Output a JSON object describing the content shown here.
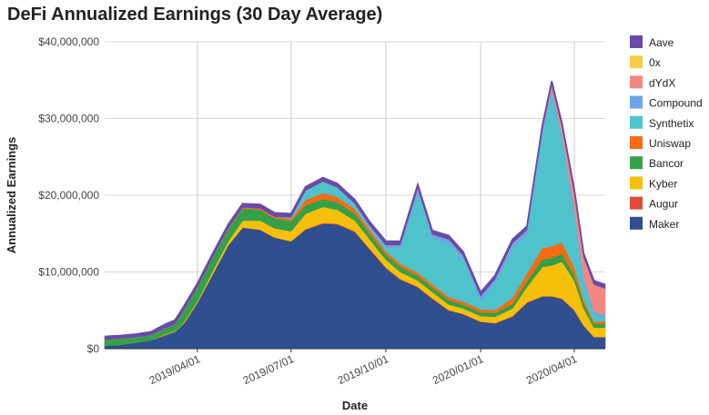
{
  "chart_data": {
    "type": "area",
    "stacked": true,
    "title": "DeFi Annualized Earnings (30 Day Average)",
    "xlabel": "Date",
    "ylabel": "Annualized Earnings",
    "ylim": [
      0,
      40000000
    ],
    "yticks": [
      0,
      10000000,
      20000000,
      30000000,
      40000000
    ],
    "ytick_labels": [
      "$0",
      "$10,000,000",
      "$20,000,000",
      "$30,000,000",
      "$40,000,000"
    ],
    "xlim": [
      "2019-01-01",
      "2020-05-01"
    ],
    "xticks": [
      "2019-04-01",
      "2019-07-01",
      "2019-10-01",
      "2020-01-01",
      "2020-04-01"
    ],
    "xtick_labels": [
      "2019/04/01",
      "2019/07/01",
      "2019/10/01",
      "2020/01/01",
      "2020/04/01"
    ],
    "grid": "vertical",
    "legend_position": "right",
    "x": [
      "2019-01-01",
      "2019-01-15",
      "2019-02-01",
      "2019-02-15",
      "2019-03-01",
      "2019-03-10",
      "2019-03-15",
      "2019-03-20",
      "2019-04-01",
      "2019-04-15",
      "2019-05-01",
      "2019-05-15",
      "2019-06-01",
      "2019-06-15",
      "2019-07-01",
      "2019-07-15",
      "2019-08-01",
      "2019-08-15",
      "2019-09-01",
      "2019-09-15",
      "2019-10-01",
      "2019-10-15",
      "2019-11-01",
      "2019-11-15",
      "2019-12-01",
      "2019-12-15",
      "2020-01-01",
      "2020-01-15",
      "2020-02-01",
      "2020-02-15",
      "2020-03-01",
      "2020-03-10",
      "2020-03-20",
      "2020-04-01",
      "2020-04-10",
      "2020-04-20",
      "2020-05-01"
    ],
    "series": [
      {
        "name": "Maker",
        "color": "#2f4f8f",
        "values": [
          400000,
          500000,
          800000,
          1100000,
          1800000,
          2200000,
          2800000,
          3500000,
          6000000,
          9500000,
          13500000,
          15800000,
          15500000,
          14500000,
          14000000,
          15500000,
          16300000,
          16200000,
          15200000,
          13000000,
          10500000,
          9000000,
          8000000,
          6500000,
          5000000,
          4500000,
          3500000,
          3300000,
          4200000,
          6000000,
          6800000,
          6800000,
          6500000,
          5000000,
          3000000,
          1500000,
          1500000
        ]
      },
      {
        "name": "Augur",
        "color": "#e04a3a",
        "values": [
          0,
          0,
          0,
          0,
          0,
          0,
          0,
          0,
          0,
          0,
          0,
          0,
          0,
          0,
          0,
          100000,
          100000,
          100000,
          100000,
          100000,
          100000,
          100000,
          100000,
          100000,
          50000,
          50000,
          50000,
          50000,
          50000,
          50000,
          50000,
          50000,
          50000,
          50000,
          50000,
          50000,
          50000
        ]
      },
      {
        "name": "Kyber",
        "color": "#f6c00a",
        "values": [
          0,
          0,
          0,
          0,
          100000,
          100000,
          100000,
          200000,
          200000,
          400000,
          500000,
          900000,
          1200000,
          1200000,
          1300000,
          2000000,
          2100000,
          1800000,
          1400000,
          1200000,
          1000000,
          900000,
          800000,
          800000,
          700000,
          700000,
          700000,
          800000,
          1000000,
          2000000,
          3800000,
          4000000,
          4800000,
          3800000,
          2200000,
          1200000,
          1200000
        ]
      },
      {
        "name": "Bancor",
        "color": "#34a049",
        "values": [
          800000,
          800000,
          700000,
          700000,
          800000,
          900000,
          1300000,
          1600000,
          1800000,
          1800000,
          1600000,
          1600000,
          1400000,
          1300000,
          1300000,
          1100000,
          1000000,
          1000000,
          900000,
          800000,
          700000,
          700000,
          600000,
          600000,
          600000,
          500000,
          500000,
          500000,
          600000,
          800000,
          1000000,
          1000000,
          1000000,
          800000,
          700000,
          500000,
          500000
        ]
      },
      {
        "name": "Uniswap",
        "color": "#f56c14",
        "values": [
          0,
          0,
          0,
          0,
          0,
          0,
          0,
          0,
          0,
          0,
          100000,
          100000,
          200000,
          200000,
          300000,
          700000,
          800000,
          700000,
          600000,
          500000,
          400000,
          400000,
          400000,
          400000,
          400000,
          400000,
          400000,
          400000,
          800000,
          1000000,
          1500000,
          1500000,
          1500000,
          1000000,
          500000,
          300000,
          300000
        ]
      },
      {
        "name": "Synthetix",
        "color": "#4ec3cc",
        "values": [
          0,
          0,
          0,
          0,
          0,
          0,
          0,
          0,
          0,
          0,
          0,
          0,
          0,
          0,
          200000,
          1200000,
          1500000,
          1200000,
          600000,
          300000,
          500000,
          2000000,
          10500000,
          6000000,
          7000000,
          5500000,
          1200000,
          3500000,
          6500000,
          5000000,
          15000000,
          20000000,
          13500000,
          7000000,
          2500000,
          1000000,
          500000
        ]
      },
      {
        "name": "Compound",
        "color": "#6fa6e8",
        "values": [
          0,
          0,
          0,
          0,
          0,
          0,
          0,
          0,
          0,
          0,
          0,
          0,
          0,
          0,
          0,
          0,
          0,
          0,
          100000,
          200000,
          300000,
          400000,
          500000,
          500000,
          500000,
          500000,
          500000,
          500000,
          600000,
          600000,
          500000,
          500000,
          500000,
          600000,
          500000,
          300000,
          300000
        ]
      },
      {
        "name": "dYdX",
        "color": "#f08a80",
        "values": [
          0,
          0,
          0,
          0,
          0,
          0,
          0,
          0,
          0,
          0,
          0,
          0,
          0,
          0,
          0,
          0,
          0,
          0,
          0,
          0,
          0,
          0,
          0,
          0,
          0,
          0,
          0,
          0,
          0,
          0,
          0,
          500000,
          1000000,
          2000000,
          2500000,
          3500000,
          3500000
        ]
      },
      {
        "name": "0x",
        "color": "#f8cc44",
        "values": [
          0,
          0,
          0,
          0,
          0,
          0,
          0,
          0,
          0,
          0,
          0,
          0,
          0,
          0,
          0,
          0,
          0,
          0,
          0,
          0,
          0,
          0,
          0,
          0,
          0,
          0,
          0,
          0,
          0,
          0,
          0,
          0,
          0,
          0,
          0,
          0,
          0
        ]
      },
      {
        "name": "Aave",
        "color": "#6a4aa8",
        "values": [
          400000,
          400000,
          400000,
          400000,
          500000,
          500000,
          500000,
          500000,
          500000,
          500000,
          500000,
          500000,
          500000,
          500000,
          500000,
          500000,
          500000,
          500000,
          500000,
          500000,
          500000,
          500000,
          500000,
          500000,
          500000,
          500000,
          500000,
          500000,
          500000,
          500000,
          500000,
          500000,
          500000,
          500000,
          500000,
          500000,
          500000
        ]
      }
    ],
    "legend_order": [
      "Aave",
      "0x",
      "dYdX",
      "Compound",
      "Synthetix",
      "Uniswap",
      "Bancor",
      "Kyber",
      "Augur",
      "Maker"
    ]
  }
}
